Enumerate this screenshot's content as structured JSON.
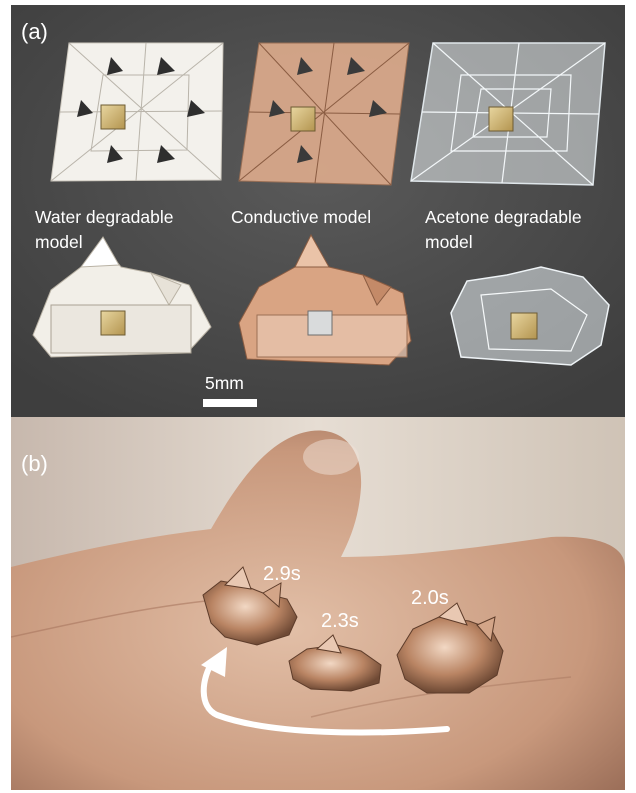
{
  "figure": {
    "panel_a": {
      "letter": "(a)",
      "captions": [
        [
          "Water degradable",
          "model"
        ],
        [
          "Conductive model"
        ],
        [
          "Acetone degradable",
          "model"
        ]
      ],
      "scale_label": "5mm"
    },
    "panel_b": {
      "letter": "(b)",
      "times": [
        "2.9s",
        "2.3s",
        "2.0s"
      ]
    }
  },
  "colors": {
    "panel_a_background": "#4c4c4c",
    "paper_white": "#f2efe8",
    "copper": "#d9a483",
    "clear_plastic": "#e8eef2",
    "magnet_gold": "#b89a5a",
    "skin": "#c9a18a",
    "text": "#ffffff"
  }
}
